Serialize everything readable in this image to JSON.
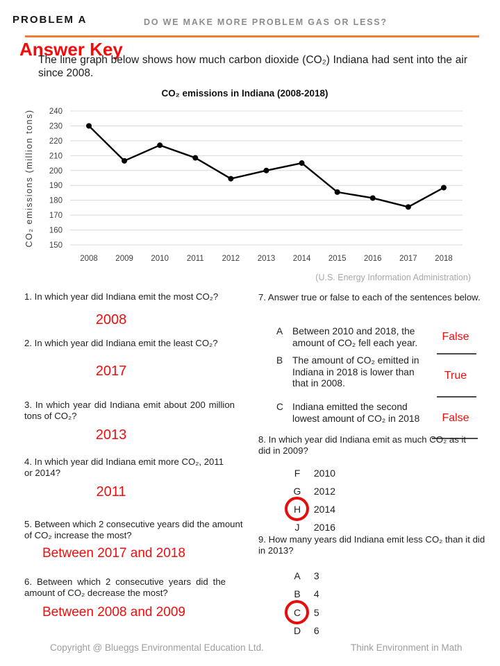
{
  "header": {
    "problem_label": "PROBLEM A",
    "title": "DO WE MAKE MORE PROBLEM GAS OR LESS?",
    "answer_key_label": "Answer Key",
    "intro": "The line graph below shows how much carbon dioxide (CO₂) Indiana had sent into the air since 2008."
  },
  "chart_data": {
    "type": "line",
    "title": "CO₂ emissions in Indiana (2008-2018)",
    "ylabel": "CO₂ emissions (million tons)",
    "x": [
      2008,
      2009,
      2010,
      2011,
      2012,
      2013,
      2014,
      2015,
      2016,
      2017,
      2018
    ],
    "values": [
      230,
      206.5,
      217,
      208.5,
      194.5,
      200,
      205,
      185.5,
      181.5,
      175.5,
      188.5
    ],
    "ylim": [
      150,
      240
    ],
    "ytick_step": 10,
    "grid": true,
    "legend": "none",
    "line_color": "#000000",
    "marker": "circle",
    "source": "(U.S. Energy Information Administration)"
  },
  "questions_left": [
    {
      "text": "1. In which year did Indiana emit the most CO₂?",
      "answer": "2008"
    },
    {
      "text": "2. In which year did Indiana emit the least CO₂?",
      "answer": "2017"
    },
    {
      "text": "3. In which year did Indiana emit about 200 million tons of CO₂?",
      "answer": "2013"
    },
    {
      "text": "4. In which year did Indiana emit more CO₂, 2011 or 2014?",
      "answer": "2011"
    },
    {
      "text": "5. Between which 2 consecutive years did the amount of CO₂ increase the most?",
      "answer": "Between 2017 and 2018"
    },
    {
      "text": "6. Between which 2 consecutive years did the amount of CO₂ decrease the most?",
      "answer": "Between 2008 and 2009"
    }
  ],
  "question7": {
    "text": "7. Answer true or false to each of the sentences below.",
    "items": [
      {
        "letter": "A",
        "text": "Between 2010 and 2018, the amount of CO₂ fell each year.",
        "answer": "False"
      },
      {
        "letter": "B",
        "text": "The amount of CO₂ emitted in Indiana in 2018 is lower than that in 2008.",
        "answer": "True"
      },
      {
        "letter": "C",
        "text": "Indiana emitted the second lowest amount of CO₂ in 2018",
        "answer": "False"
      }
    ]
  },
  "question8": {
    "text": "8. In which year did Indiana emit as much CO₂ as it did in 2009?",
    "options": [
      {
        "letter": "F",
        "value": "2010",
        "circled": false
      },
      {
        "letter": "G",
        "value": "2012",
        "circled": false
      },
      {
        "letter": "H",
        "value": "2014",
        "circled": true
      },
      {
        "letter": "J",
        "value": "2016",
        "circled": false
      }
    ]
  },
  "question9": {
    "text": "9. How many years did Indiana emit less CO₂ than it did in 2013?",
    "options": [
      {
        "letter": "A",
        "value": "3",
        "circled": false
      },
      {
        "letter": "B",
        "value": "4",
        "circled": false
      },
      {
        "letter": "C",
        "value": "5",
        "circled": true
      },
      {
        "letter": "D",
        "value": "6",
        "circled": false
      }
    ]
  },
  "footer": {
    "copyright": "Copyright @ Blueggs Environmental Education Ltd.",
    "tagline": "Think Environment in Math"
  },
  "colors": {
    "answer_red": "#f20d0d",
    "accent_orange": "#ed7d31",
    "gridline_gray": "#d9d9d9",
    "muted_gray": "#9e9e9e"
  }
}
